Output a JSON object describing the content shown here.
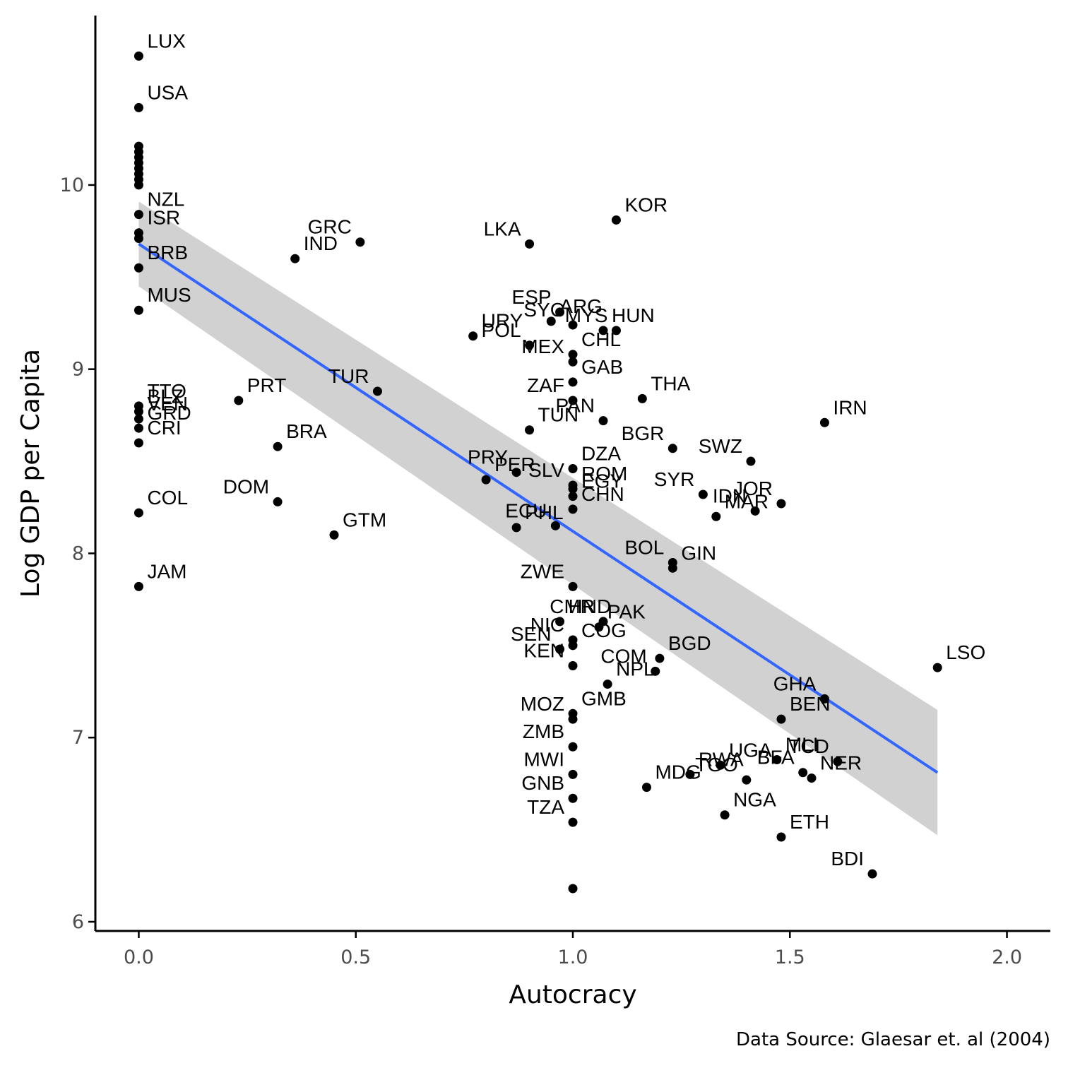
{
  "chart_data": {
    "type": "scatter",
    "xlabel": "Autocracy",
    "ylabel": "Log GDP per Capita",
    "caption": "Data Source: Glaesar et. al (2004)",
    "xlim": [
      -0.1,
      2.1
    ],
    "ylim": [
      5.95,
      10.92
    ],
    "xticks": [
      0.0,
      0.5,
      1.0,
      1.5,
      2.0
    ],
    "xtick_labels": [
      "0.0",
      "0.5",
      "1.0",
      "1.5",
      "2.0"
    ],
    "yticks": [
      6,
      7,
      8,
      9,
      10
    ],
    "ytick_labels": [
      "6",
      "7",
      "8",
      "9",
      "10"
    ],
    "grid": false,
    "legend": "none",
    "colors": {
      "point": "#000000",
      "fit_line": "#3366ff",
      "band": "#bdbdbd",
      "axis": "#000000"
    },
    "regression": {
      "method": "linear",
      "x": [
        0.0,
        1.84
      ],
      "y": [
        9.68,
        6.81
      ],
      "ci_lower": [
        9.45,
        6.47
      ],
      "ci_upper": [
        9.91,
        7.15
      ]
    },
    "points": [
      {
        "x": 0.0,
        "y": 10.7,
        "label": "LUX"
      },
      {
        "x": 0.0,
        "y": 10.42,
        "label": "USA"
      },
      {
        "x": 0.0,
        "y": 10.21,
        "label": ""
      },
      {
        "x": 0.0,
        "y": 10.18,
        "label": ""
      },
      {
        "x": 0.0,
        "y": 10.15,
        "label": ""
      },
      {
        "x": 0.0,
        "y": 10.12,
        "label": ""
      },
      {
        "x": 0.0,
        "y": 10.09,
        "label": ""
      },
      {
        "x": 0.0,
        "y": 10.06,
        "label": ""
      },
      {
        "x": 0.0,
        "y": 10.03,
        "label": ""
      },
      {
        "x": 0.0,
        "y": 10.0,
        "label": ""
      },
      {
        "x": 0.0,
        "y": 9.84,
        "label": "NZL"
      },
      {
        "x": 0.0,
        "y": 9.74,
        "label": "ISR"
      },
      {
        "x": 0.0,
        "y": 9.71,
        "label": ""
      },
      {
        "x": 0.0,
        "y": 9.55,
        "label": "BRB"
      },
      {
        "x": 0.0,
        "y": 9.32,
        "label": "MUS"
      },
      {
        "x": 0.0,
        "y": 8.8,
        "label": "TTO"
      },
      {
        "x": 0.0,
        "y": 8.77,
        "label": "BLZ"
      },
      {
        "x": 0.0,
        "y": 8.73,
        "label": "VEN"
      },
      {
        "x": 0.0,
        "y": 8.68,
        "label": "GRD"
      },
      {
        "x": 0.0,
        "y": 8.6,
        "label": "CRI"
      },
      {
        "x": 0.0,
        "y": 8.22,
        "label": "COL"
      },
      {
        "x": 0.0,
        "y": 7.82,
        "label": "JAM"
      },
      {
        "x": 0.36,
        "y": 9.6,
        "label": "IND"
      },
      {
        "x": 0.51,
        "y": 9.69,
        "label": "GRC"
      },
      {
        "x": 0.23,
        "y": 8.83,
        "label": "PRT"
      },
      {
        "x": 0.55,
        "y": 8.88,
        "label": "TUR"
      },
      {
        "x": 0.32,
        "y": 8.58,
        "label": "BRA"
      },
      {
        "x": 0.32,
        "y": 8.28,
        "label": "DOM"
      },
      {
        "x": 0.45,
        "y": 8.1,
        "label": "GTM"
      },
      {
        "x": 0.9,
        "y": 9.68,
        "label": "LKA"
      },
      {
        "x": 1.1,
        "y": 9.81,
        "label": "KOR"
      },
      {
        "x": 0.97,
        "y": 9.31,
        "label": "ESP"
      },
      {
        "x": 0.95,
        "y": 9.26,
        "label": "ARG"
      },
      {
        "x": 1.0,
        "y": 9.24,
        "label": "SYC"
      },
      {
        "x": 1.07,
        "y": 9.21,
        "label": "HUN"
      },
      {
        "x": 1.1,
        "y": 9.21,
        "label": "MYS"
      },
      {
        "x": 0.77,
        "y": 9.18,
        "label": "URY"
      },
      {
        "x": 0.9,
        "y": 9.13,
        "label": "POL"
      },
      {
        "x": 1.0,
        "y": 9.08,
        "label": "CHL"
      },
      {
        "x": 1.0,
        "y": 9.04,
        "label": "MEX"
      },
      {
        "x": 1.0,
        "y": 8.93,
        "label": "GAB"
      },
      {
        "x": 1.0,
        "y": 8.83,
        "label": "ZAF"
      },
      {
        "x": 1.16,
        "y": 8.84,
        "label": "THA"
      },
      {
        "x": 1.07,
        "y": 8.72,
        "label": "PAN"
      },
      {
        "x": 0.9,
        "y": 8.67,
        "label": "TUN"
      },
      {
        "x": 1.23,
        "y": 8.57,
        "label": "BGR"
      },
      {
        "x": 1.58,
        "y": 8.71,
        "label": "IRN"
      },
      {
        "x": 1.41,
        "y": 8.5,
        "label": "SWZ"
      },
      {
        "x": 1.0,
        "y": 8.46,
        "label": "DZA"
      },
      {
        "x": 0.87,
        "y": 8.44,
        "label": "PRY"
      },
      {
        "x": 0.8,
        "y": 8.4,
        "label": "PER"
      },
      {
        "x": 1.0,
        "y": 8.37,
        "label": "SLV"
      },
      {
        "x": 1.0,
        "y": 8.35,
        "label": "ROM"
      },
      {
        "x": 1.3,
        "y": 8.32,
        "label": "SYR"
      },
      {
        "x": 1.0,
        "y": 8.31,
        "label": "EGY"
      },
      {
        "x": 1.48,
        "y": 8.27,
        "label": "JOR"
      },
      {
        "x": 1.0,
        "y": 8.24,
        "label": "CHN"
      },
      {
        "x": 1.42,
        "y": 8.23,
        "label": "IDN"
      },
      {
        "x": 1.33,
        "y": 8.2,
        "label": "MAR"
      },
      {
        "x": 0.96,
        "y": 8.15,
        "label": "ECU"
      },
      {
        "x": 0.87,
        "y": 8.14,
        "label": "PHL"
      },
      {
        "x": 1.23,
        "y": 7.95,
        "label": "BOL"
      },
      {
        "x": 1.23,
        "y": 7.92,
        "label": "GIN"
      },
      {
        "x": 1.0,
        "y": 7.82,
        "label": "ZWE"
      },
      {
        "x": 0.97,
        "y": 7.63,
        "label": "HND"
      },
      {
        "x": 1.07,
        "y": 7.63,
        "label": "CMR"
      },
      {
        "x": 1.06,
        "y": 7.6,
        "label": "PAK"
      },
      {
        "x": 1.0,
        "y": 7.53,
        "label": "NIC"
      },
      {
        "x": 1.0,
        "y": 7.5,
        "label": "COG"
      },
      {
        "x": 0.97,
        "y": 7.48,
        "label": "SEN"
      },
      {
        "x": 1.2,
        "y": 7.43,
        "label": "BGD"
      },
      {
        "x": 1.0,
        "y": 7.39,
        "label": "KEN"
      },
      {
        "x": 1.84,
        "y": 7.38,
        "label": "LSO"
      },
      {
        "x": 1.19,
        "y": 7.36,
        "label": "COM"
      },
      {
        "x": 1.08,
        "y": 7.29,
        "label": "NPL"
      },
      {
        "x": 1.58,
        "y": 7.21,
        "label": "GHA"
      },
      {
        "x": 1.0,
        "y": 7.13,
        "label": "GMB"
      },
      {
        "x": 1.0,
        "y": 7.1,
        "label": "MOZ"
      },
      {
        "x": 1.48,
        "y": 7.1,
        "label": "BEN"
      },
      {
        "x": 1.0,
        "y": 6.95,
        "label": "ZMB"
      },
      {
        "x": 1.47,
        "y": 6.88,
        "label": "MLI"
      },
      {
        "x": 1.61,
        "y": 6.87,
        "label": "TCD"
      },
      {
        "x": 1.34,
        "y": 6.85,
        "label": "UGA"
      },
      {
        "x": 1.53,
        "y": 6.81,
        "label": "BFA"
      },
      {
        "x": 1.27,
        "y": 6.8,
        "label": "RWA"
      },
      {
        "x": 1.0,
        "y": 6.8,
        "label": "MWI"
      },
      {
        "x": 1.55,
        "y": 6.78,
        "label": "NER"
      },
      {
        "x": 1.4,
        "y": 6.77,
        "label": "TGO"
      },
      {
        "x": 1.17,
        "y": 6.73,
        "label": "MDG"
      },
      {
        "x": 1.0,
        "y": 6.67,
        "label": "GNB"
      },
      {
        "x": 1.35,
        "y": 6.58,
        "label": "NGA"
      },
      {
        "x": 1.0,
        "y": 6.54,
        "label": "TZA"
      },
      {
        "x": 1.48,
        "y": 6.46,
        "label": "ETH"
      },
      {
        "x": 1.69,
        "y": 6.26,
        "label": "BDI"
      },
      {
        "x": 1.0,
        "y": 6.18,
        "label": ""
      }
    ]
  }
}
